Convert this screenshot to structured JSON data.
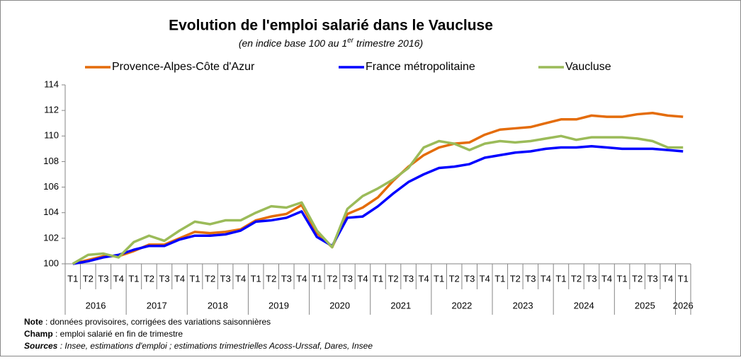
{
  "chart_data": {
    "type": "line",
    "title": "Evolution de l'emploi salarié dans le Vaucluse",
    "subtitle": [
      "(en indice base 100 au 1",
      "er",
      " trimestre 2016)"
    ],
    "categories": [
      "T1",
      "T2",
      "T3",
      "T4",
      "T1",
      "T2",
      "T3",
      "T4",
      "T1",
      "T2",
      "T3",
      "T4",
      "T1",
      "T2",
      "T3",
      "T4",
      "T1",
      "T2",
      "T3",
      "T4",
      "T1",
      "T2",
      "T3",
      "T4",
      "T1",
      "T2",
      "T3",
      "T4",
      "T1",
      "T2",
      "T3",
      "T4",
      "T1",
      "T2",
      "T3",
      "T4",
      "T1",
      "T2",
      "T3",
      "T4",
      "T1"
    ],
    "years": [
      "2016",
      "2017",
      "2018",
      "2019",
      "2020",
      "2021",
      "2022",
      "2023",
      "2024",
      "2025",
      "2026"
    ],
    "series": [
      {
        "name": "Provence-Alpes-Côte d'Azur",
        "color": "#e46c0a",
        "values": [
          100,
          100.3,
          100.6,
          100.6,
          101.0,
          101.5,
          101.5,
          102.0,
          102.5,
          102.4,
          102.5,
          102.7,
          103.4,
          103.7,
          103.9,
          104.6,
          102.4,
          101.3,
          103.9,
          104.4,
          105.2,
          106.5,
          107.6,
          108.5,
          109.1,
          109.4,
          109.5,
          110.1,
          110.5,
          110.6,
          110.7,
          111.0,
          111.3,
          111.3,
          111.6,
          111.5,
          111.5,
          111.7,
          111.8,
          111.6,
          111.5
        ]
      },
      {
        "name": "France métropolitaine",
        "color": "#0000ff",
        "values": [
          100,
          100.2,
          100.5,
          100.7,
          101.1,
          101.4,
          101.4,
          101.9,
          102.2,
          102.2,
          102.3,
          102.6,
          103.3,
          103.4,
          103.6,
          104.1,
          102.1,
          101.4,
          103.6,
          103.7,
          104.5,
          105.5,
          106.4,
          107.0,
          107.5,
          107.6,
          107.8,
          108.3,
          108.5,
          108.7,
          108.8,
          109.0,
          109.1,
          109.1,
          109.2,
          109.1,
          109.0,
          109.0,
          109.0,
          108.9,
          108.8
        ]
      },
      {
        "name": "Vaucluse",
        "color": "#9bbb59",
        "values": [
          100,
          100.7,
          100.8,
          100.5,
          101.7,
          102.2,
          101.8,
          102.6,
          103.3,
          103.1,
          103.4,
          103.4,
          104.0,
          104.5,
          104.4,
          104.8,
          102.6,
          101.3,
          104.3,
          105.3,
          105.9,
          106.6,
          107.5,
          109.1,
          109.6,
          109.4,
          108.9,
          109.4,
          109.6,
          109.5,
          109.6,
          109.8,
          110.0,
          109.7,
          109.9,
          109.9,
          109.9,
          109.8,
          109.6,
          109.1,
          109.1
        ]
      }
    ],
    "ylim": [
      100,
      114
    ],
    "yticks": [
      100,
      102,
      104,
      106,
      108,
      110,
      112,
      114
    ],
    "grid": false,
    "legend": "top",
    "notes": [
      {
        "label": "Note",
        "text": " : données provisoires, corrigées des variations saisonnières"
      },
      {
        "label": "Champ",
        "text": " : emploi salarié en fin de trimestre"
      },
      {
        "label": "Sources",
        "text": " : Insee, estimations d'emploi ; estimations trimestrielles Acoss-Urssaf, Dares, Insee"
      }
    ]
  }
}
